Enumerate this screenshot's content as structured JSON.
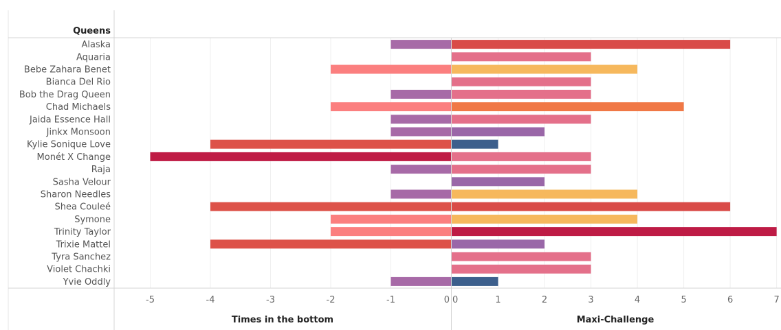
{
  "chart_data": {
    "type": "bar",
    "row_header": "Queens",
    "categories": [
      "Alaska",
      "Aquaria",
      "Bebe Zahara Benet",
      "Bianca Del Rio",
      "Bob the Drag Queen",
      "Chad Michaels",
      "Jaida Essence Hall",
      "Jinkx Monsoon",
      "Kylie Sonique Love",
      "Monét X Change",
      "Raja",
      "Sasha Velour",
      "Sharon Needles",
      "Shea Couleé",
      "Symone",
      "Trinity Taylor",
      "Trixie Mattel",
      "Tyra Sanchez",
      "Violet Chachki",
      "Yvie Oddly"
    ],
    "panels": [
      {
        "xlabel": "Times in the bottom",
        "xlim": [
          -5.6,
          0
        ],
        "ticks": [
          -5,
          -4,
          -3,
          -2,
          -1,
          0
        ],
        "values": [
          -1,
          0,
          -2,
          0,
          -1,
          -2,
          -1,
          -1,
          -4,
          -5,
          -1,
          0,
          -1,
          -4,
          -2,
          -2,
          -4,
          0,
          0,
          -1
        ]
      },
      {
        "xlabel": "Maxi-Challenge",
        "xlim": [
          0,
          7.05
        ],
        "ticks": [
          0,
          1,
          2,
          3,
          4,
          5,
          6,
          7
        ],
        "values": [
          6,
          3,
          4,
          3,
          3,
          5,
          3,
          2,
          1,
          3,
          3,
          2,
          4,
          6,
          4,
          7,
          2,
          3,
          3,
          1
        ]
      }
    ],
    "color_scale": {
      "1": "#3c5f8c",
      "2": "#9a67a8",
      "3": "#e4708a",
      "4": "#f6b85d",
      "5": "#f07846",
      "6": "#d94b48",
      "7": "#be1b45"
    },
    "neg_color_scale": {
      "1": "#a76aa7",
      "2": "#fb7f7f",
      "4": "#dd5249",
      "5": "#bf1c45"
    },
    "grid": true
  }
}
